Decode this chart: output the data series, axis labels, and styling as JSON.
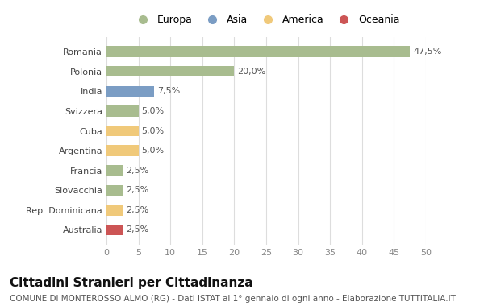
{
  "categories": [
    "Romania",
    "Polonia",
    "India",
    "Svizzera",
    "Cuba",
    "Argentina",
    "Francia",
    "Slovacchia",
    "Rep. Dominicana",
    "Australia"
  ],
  "values": [
    47.5,
    20.0,
    7.5,
    5.0,
    5.0,
    5.0,
    2.5,
    2.5,
    2.5,
    2.5
  ],
  "colors": [
    "#a8bc8f",
    "#a8bc8f",
    "#7b9dc4",
    "#a8bc8f",
    "#f0c97a",
    "#f0c97a",
    "#a8bc8f",
    "#a8bc8f",
    "#f0c97a",
    "#cc5555"
  ],
  "labels": [
    "47,5%",
    "20,0%",
    "7,5%",
    "5,0%",
    "5,0%",
    "5,0%",
    "2,5%",
    "2,5%",
    "2,5%",
    "2,5%"
  ],
  "legend": [
    {
      "label": "Europa",
      "color": "#a8bc8f"
    },
    {
      "label": "Asia",
      "color": "#7b9dc4"
    },
    {
      "label": "America",
      "color": "#f0c97a"
    },
    {
      "label": "Oceania",
      "color": "#cc5555"
    }
  ],
  "xlim": [
    0,
    50
  ],
  "xticks": [
    0,
    5,
    10,
    15,
    20,
    25,
    30,
    35,
    40,
    45,
    50
  ],
  "title": "Cittadini Stranieri per Cittadinanza",
  "subtitle": "COMUNE DI MONTEROSSO ALMO (RG) - Dati ISTAT al 1° gennaio di ogni anno - Elaborazione TUTTITALIA.IT",
  "background_color": "#ffffff",
  "grid_color": "#dddddd",
  "bar_height": 0.55,
  "bar_label_fontsize": 8,
  "title_fontsize": 11,
  "subtitle_fontsize": 7.5,
  "ytick_fontsize": 8,
  "xtick_fontsize": 8
}
